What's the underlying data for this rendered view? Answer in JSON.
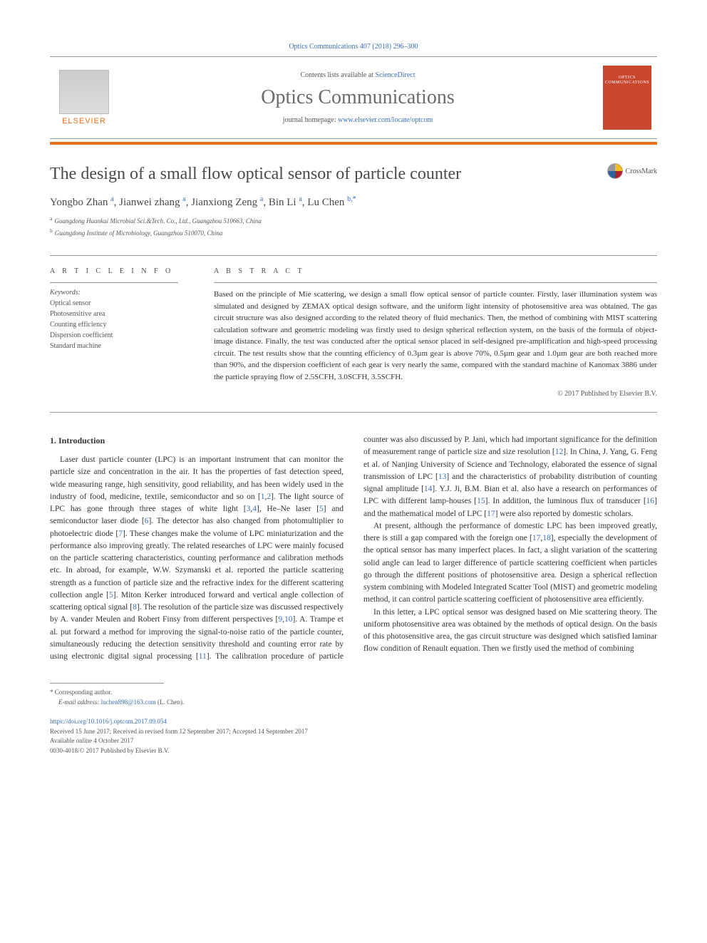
{
  "header": {
    "citation": "Optics Communications 407 (2018) 296–300",
    "contents_prefix": "Contents lists available at ",
    "contents_link": "ScienceDirect",
    "journal_name": "Optics Communications",
    "homepage_prefix": "journal homepage: ",
    "homepage_link": "www.elsevier.com/locate/optcom",
    "publisher_text": "ELSEVIER",
    "cover_line1": "OPTICS",
    "cover_line2": "COMMUNICATIONS"
  },
  "crossmark": {
    "label": "CrossMark"
  },
  "article": {
    "title": "The design of a small flow optical sensor of particle counter",
    "authors_html_parts": [
      {
        "name": "Yongbo Zhan",
        "sup": "a"
      },
      {
        "name": "Jianwei zhang",
        "sup": "a"
      },
      {
        "name": "Jianxiong Zeng",
        "sup": "a"
      },
      {
        "name": "Bin Li",
        "sup": "a"
      },
      {
        "name": "Lu Chen",
        "sup": "b,*"
      }
    ],
    "affiliations": [
      {
        "marker": "a",
        "text": "Guangdong Huankai Microbial Sci.&Tech. Co., Ltd., Guangzhou 510663, China"
      },
      {
        "marker": "b",
        "text": "Guangdong Institute of Microbiology, Guangzhou 510070, China"
      }
    ]
  },
  "info": {
    "label": "A R T I C L E   I N F O",
    "keywords_label": "Keywords:",
    "keywords": [
      "Optical sensor",
      "Photosensitive area",
      "Counting efficiency",
      "Dispersion coefficient",
      "Standard machine"
    ]
  },
  "abstract": {
    "label": "A B S T R A C T",
    "text": "Based on the principle of Mie scattering, we design a small flow optical sensor of particle counter. Firstly, laser illumination system was simulated and designed by ZEMAX optical design software, and the uniform light intensity of photosensitive area was obtained. The gas circuit structure was also designed according to the related theory of fluid mechanics. Then, the method of combining with MIST scattering calculation software and geometric modeling was firstly used to design spherical reflection system, on the basis of the formula of object-image distance. Finally, the test was conducted after the optical sensor placed in self-designed pre-amplification and high-speed processing circuit. The test results show that the counting efficiency of 0.3µm gear is above 70%, 0.5µm gear and 1.0µm gear are both reached more than 90%, and the dispersion coefficient of each gear is very nearly the same, compared with the standard machine of Kanomax 3886 under the particle spraying flow of 2.5SCFH, 3.0SCFH, 3.5SCFH.",
    "copyright": "© 2017 Published by Elsevier B.V."
  },
  "body": {
    "heading": "1. Introduction",
    "p1a": "Laser dust particle counter (LPC) is an important instrument that can monitor the particle size and concentration in the air. It has the properties of fast detection speed, wide measuring range, high sensitivity, good reliability, and has been widely used in the industry of food, medicine, textile, semiconductor and so on [",
    "r1": "1",
    "p1b": ",",
    "r2": "2",
    "p1c": "]. The light source of LPC has gone through three stages of white light [",
    "r3": "3",
    "p1d": ",",
    "r4": "4",
    "p1e": "], He–Ne laser [",
    "r5": "5",
    "p1f": "] and semiconductor laser diode [",
    "r6": "6",
    "p1g": "]. The detector has also changed from photomultiplier to photoelectric diode [",
    "r7": "7",
    "p1h": "]. These changes make the volume of LPC miniaturization and the performance also improving greatly. The related researches of LPC were mainly focused on the particle scattering characteristics, counting performance and calibration methods etc. In abroad, for example, W.W. Szymanski et al. reported the particle scattering strength as a function of particle size and the refractive index for the different scattering collection angle [",
    "r5b": "5",
    "p1i": "]. Miton Kerker introduced forward and vertical angle collection of scattering optical signal [",
    "r8": "8",
    "p1j": "]. The resolution of the particle size was discussed respectively by A. vander Meulen and Robert Finsy from different perspectives [",
    "r9": "9",
    "p1k": ",",
    "r10": "10",
    "p1l": "]. A. Trampe et al. put forward a method for improving the signal-to-noise ratio of the particle counter, simultaneously reducing the detection sensitivity threshold and counting error rate by using electronic digital signal processing [",
    "r11": "11",
    "p1m": "]. The calibration procedure of particle counter was also discussed by P. Jani, which had important significance for the definition of measurement range of particle size and size resolution [",
    "r12": "12",
    "p1n": "]. In China, J. Yang, G. Feng et al. of Nanjing University of Science and Technology, elaborated the essence of signal transmission of LPC [",
    "r13": "13",
    "p1o": "] and the characteristics of probability distribution of counting signal amplitude [",
    "r14": "14",
    "p1p": "]. Y.J. Ji, B.M. Bian et al. also have a research on performances of LPC with different lamp-houses [",
    "r15": "15",
    "p1q": "]. In addition, the luminous flux of transducer [",
    "r16": "16",
    "p1r": "] and the mathematical model of LPC [",
    "r17": "17",
    "p1s": "] were also reported by domestic scholars.",
    "p2a": "At present, although the performance of domestic LPC has been improved greatly, there is still a gap compared with the foreign one [",
    "r17b": "17",
    "p2b": ",",
    "r18": "18",
    "p2c": "], especially the development of the optical sensor has many imperfect places. In fact, a slight variation of the scattering solid angle can lead to larger difference of particle scattering coefficient when particles go through the different positions of photosensitive area. Design a spherical reflection system combining with Modeled Integrated Scatter Tool (MIST) and geometric modeling method, it can control particle scattering coefficient of photosensitive area efficiently.",
    "p3": "In this letter, a LPC optical sensor was designed based on Mie scattering theory. The uniform photosensitive area was obtained by the methods of optical design. On the basis of this photosensitive area, the gas circuit structure was designed which satisfied laminar flow condition of Renault equation. Then we firstly used the method of combining"
  },
  "footnote": {
    "corr": "* Corresponding author.",
    "email_label": "E-mail address: ",
    "email": "luchen898@163.com",
    "email_attr": " (L. Chen)."
  },
  "footer": {
    "doi": "https://doi.org/10.1016/j.optcom.2017.09.054",
    "history": "Received 15 June 2017; Received in revised form 12 September 2017; Accepted 14 September 2017",
    "online": "Available online 4 October 2017",
    "issn": "0030-4018/© 2017 Published by Elsevier B.V."
  },
  "colors": {
    "link": "#3a6fb5",
    "orange": "#E9711C",
    "cover": "#c9472f"
  }
}
